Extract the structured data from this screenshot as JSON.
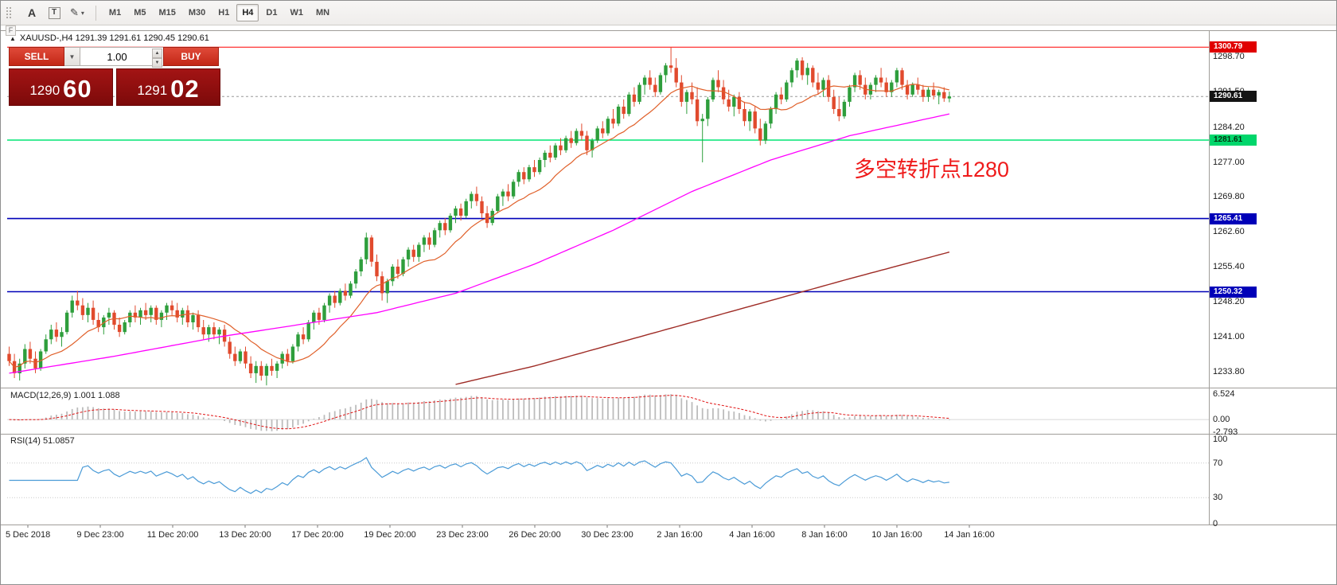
{
  "toolbar": {
    "arrow_label": "A",
    "text_label": "T",
    "timeframes": [
      "M1",
      "M5",
      "M15",
      "M30",
      "H1",
      "H4",
      "D1",
      "W1",
      "MN"
    ],
    "active_timeframe": "H4"
  },
  "icons": {
    "pencil": "✎",
    "caret": "▾",
    "triangle": "▲",
    "combo_caret": "▼",
    "spin_up": "▲",
    "spin_down": "▼",
    "f_marker": "F"
  },
  "chart_header": {
    "symbol_line": "XAUUSD-,H4  1291.39 1291.61 1290.45 1290.61"
  },
  "trade_panel": {
    "sell_label": "SELL",
    "buy_label": "BUY",
    "volume": "1.00",
    "sell_price_big": {
      "major": "1290",
      "minor": "60"
    },
    "buy_price_big": {
      "major": "1291",
      "minor": "02"
    }
  },
  "annotation": {
    "text": "多空转折点1280",
    "color": "#ef1b1b"
  },
  "price_axis": {
    "labels": [
      "1298.70",
      "1291.50",
      "1284.20",
      "1277.00",
      "1269.80",
      "1262.60",
      "1255.40",
      "1248.20",
      "1241.00",
      "1233.80"
    ],
    "badges": [
      {
        "label": "1300.79",
        "price": 1300.79,
        "bg": "#e00000",
        "fg": "#ffffff",
        "name": "high-price-badge"
      },
      {
        "label": "1290.61",
        "price": 1290.61,
        "bg": "#141414",
        "fg": "#ffffff",
        "name": "current-price-badge"
      },
      {
        "label": "1281.61",
        "price": 1281.61,
        "bg": "#00d66b",
        "fg": "#05320f",
        "name": "green-line-badge"
      },
      {
        "label": "1265.41",
        "price": 1265.41,
        "bg": "#0000b8",
        "fg": "#ffffff",
        "name": "blue-line-badge-upper"
      },
      {
        "label": "1250.32",
        "price": 1250.32,
        "bg": "#0000b8",
        "fg": "#ffffff",
        "name": "blue-line-badge-lower"
      }
    ]
  },
  "time_axis": {
    "labels": [
      "5 Dec 2018",
      "9 Dec 23:00",
      "11 Dec 20:00",
      "13 Dec 20:00",
      "17 Dec 20:00",
      "19 Dec 20:00",
      "23 Dec 23:00",
      "26 Dec 20:00",
      "30 Dec 23:00",
      "2 Jan 16:00",
      "4 Jan 16:00",
      "8 Jan 16:00",
      "10 Jan 16:00",
      "14 Jan 16:00"
    ]
  },
  "chart_data": {
    "type": "candlestick",
    "symbol": "XAUUSD-",
    "timeframe": "H4",
    "title": "XAUUSD-,H4",
    "ohlc_current": {
      "open": 1291.39,
      "high": 1291.61,
      "low": 1290.45,
      "close": 1290.61
    },
    "price_range": {
      "max": 1304.1,
      "min": 1230.7
    },
    "up_color": "#2e9e3c",
    "down_color": "#e14a2d",
    "candles": [
      [
        1237.5,
        1239.0,
        1235.0,
        1236.0
      ],
      [
        1236.0,
        1237.5,
        1232.5,
        1233.5
      ],
      [
        1233.5,
        1236.5,
        1232.0,
        1235.5
      ],
      [
        1235.5,
        1239.5,
        1234.5,
        1238.5
      ],
      [
        1238.5,
        1240.0,
        1235.5,
        1236.5
      ],
      [
        1236.5,
        1238.0,
        1233.5,
        1234.5
      ],
      [
        1234.5,
        1238.5,
        1234.0,
        1238.0
      ],
      [
        1238.0,
        1241.5,
        1237.5,
        1240.5
      ],
      [
        1240.5,
        1243.5,
        1239.5,
        1242.5
      ],
      [
        1242.5,
        1244.0,
        1240.0,
        1241.0
      ],
      [
        1241.0,
        1243.0,
        1239.0,
        1242.0
      ],
      [
        1242.0,
        1246.5,
        1241.5,
        1246.0
      ],
      [
        1246.0,
        1249.5,
        1245.0,
        1248.5
      ],
      [
        1248.5,
        1250.5,
        1246.5,
        1247.5
      ],
      [
        1247.5,
        1249.0,
        1244.5,
        1245.5
      ],
      [
        1245.5,
        1248.0,
        1244.0,
        1247.0
      ],
      [
        1247.0,
        1248.5,
        1243.5,
        1244.5
      ],
      [
        1244.5,
        1246.0,
        1242.0,
        1243.0
      ],
      [
        1243.0,
        1245.5,
        1241.5,
        1245.0
      ],
      [
        1245.0,
        1247.0,
        1243.5,
        1246.0
      ],
      [
        1246.0,
        1246.5,
        1242.5,
        1243.5
      ],
      [
        1243.5,
        1245.0,
        1241.0,
        1242.0
      ],
      [
        1242.0,
        1244.5,
        1241.5,
        1244.0
      ],
      [
        1244.0,
        1246.5,
        1243.0,
        1246.0
      ],
      [
        1246.0,
        1247.5,
        1244.0,
        1245.0
      ],
      [
        1245.0,
        1247.0,
        1243.5,
        1246.5
      ],
      [
        1246.5,
        1248.0,
        1244.5,
        1245.5
      ],
      [
        1245.5,
        1247.5,
        1244.0,
        1247.0
      ],
      [
        1247.0,
        1247.5,
        1243.5,
        1244.5
      ],
      [
        1244.5,
        1246.5,
        1243.0,
        1246.0
      ],
      [
        1246.0,
        1248.0,
        1244.5,
        1247.5
      ],
      [
        1247.5,
        1248.5,
        1245.5,
        1246.5
      ],
      [
        1246.5,
        1248.0,
        1244.0,
        1245.0
      ],
      [
        1245.0,
        1247.0,
        1243.5,
        1246.5
      ],
      [
        1246.5,
        1247.5,
        1243.0,
        1244.0
      ],
      [
        1244.0,
        1246.0,
        1242.5,
        1245.5
      ],
      [
        1245.5,
        1246.5,
        1242.0,
        1243.0
      ],
      [
        1243.0,
        1244.5,
        1240.5,
        1241.5
      ],
      [
        1241.5,
        1243.5,
        1240.0,
        1243.0
      ],
      [
        1243.0,
        1244.0,
        1240.5,
        1241.5
      ],
      [
        1241.5,
        1243.0,
        1239.5,
        1242.5
      ],
      [
        1242.5,
        1243.5,
        1239.0,
        1240.0
      ],
      [
        1240.0,
        1241.0,
        1236.5,
        1237.5
      ],
      [
        1237.5,
        1239.0,
        1235.0,
        1236.0
      ],
      [
        1236.0,
        1238.5,
        1235.5,
        1238.0
      ],
      [
        1238.0,
        1239.0,
        1234.5,
        1235.5
      ],
      [
        1235.5,
        1237.0,
        1232.5,
        1233.5
      ],
      [
        1233.5,
        1236.0,
        1231.5,
        1235.0
      ],
      [
        1235.0,
        1236.0,
        1232.0,
        1233.0
      ],
      [
        1233.0,
        1235.5,
        1231.0,
        1235.0
      ],
      [
        1235.0,
        1236.5,
        1233.0,
        1234.0
      ],
      [
        1234.0,
        1236.0,
        1232.5,
        1235.5
      ],
      [
        1235.5,
        1238.0,
        1234.5,
        1237.5
      ],
      [
        1237.5,
        1238.5,
        1235.0,
        1236.0
      ],
      [
        1236.0,
        1239.5,
        1235.5,
        1239.0
      ],
      [
        1239.0,
        1242.0,
        1238.0,
        1241.5
      ],
      [
        1241.5,
        1243.0,
        1239.5,
        1240.5
      ],
      [
        1240.5,
        1244.5,
        1240.0,
        1244.0
      ],
      [
        1244.0,
        1246.5,
        1242.5,
        1246.0
      ],
      [
        1246.0,
        1247.0,
        1243.5,
        1244.5
      ],
      [
        1244.5,
        1248.0,
        1244.0,
        1247.5
      ],
      [
        1247.5,
        1250.0,
        1246.0,
        1249.5
      ],
      [
        1249.5,
        1250.5,
        1247.0,
        1248.0
      ],
      [
        1248.0,
        1251.0,
        1247.5,
        1250.5
      ],
      [
        1250.5,
        1252.0,
        1248.5,
        1249.5
      ],
      [
        1249.5,
        1252.5,
        1249.0,
        1252.0
      ],
      [
        1252.0,
        1255.0,
        1251.0,
        1254.5
      ],
      [
        1254.5,
        1257.5,
        1253.5,
        1257.0
      ],
      [
        1257.0,
        1262.5,
        1256.0,
        1261.5
      ],
      [
        1261.5,
        1262.0,
        1255.5,
        1256.5
      ],
      [
        1256.5,
        1258.0,
        1252.5,
        1253.5
      ],
      [
        1253.5,
        1254.5,
        1248.5,
        1250.0
      ],
      [
        1250.0,
        1253.0,
        1248.0,
        1252.5
      ],
      [
        1252.5,
        1256.0,
        1251.5,
        1255.5
      ],
      [
        1255.5,
        1257.0,
        1253.0,
        1254.0
      ],
      [
        1254.0,
        1257.5,
        1253.5,
        1257.0
      ],
      [
        1257.0,
        1259.5,
        1255.5,
        1259.0
      ],
      [
        1259.0,
        1260.0,
        1256.5,
        1257.5
      ],
      [
        1257.5,
        1260.5,
        1256.5,
        1260.0
      ],
      [
        1260.0,
        1262.0,
        1258.5,
        1261.5
      ],
      [
        1261.5,
        1262.5,
        1259.0,
        1260.0
      ],
      [
        1260.0,
        1263.5,
        1259.5,
        1263.0
      ],
      [
        1263.0,
        1265.0,
        1261.5,
        1264.5
      ],
      [
        1264.5,
        1265.5,
        1262.0,
        1263.0
      ],
      [
        1263.0,
        1266.5,
        1262.5,
        1266.0
      ],
      [
        1266.0,
        1268.0,
        1264.5,
        1267.5
      ],
      [
        1267.5,
        1268.5,
        1265.0,
        1266.0
      ],
      [
        1266.0,
        1269.5,
        1265.5,
        1269.0
      ],
      [
        1269.0,
        1271.0,
        1267.5,
        1270.5
      ],
      [
        1270.5,
        1272.0,
        1268.0,
        1269.0
      ],
      [
        1269.0,
        1270.0,
        1265.5,
        1266.5
      ],
      [
        1266.5,
        1268.0,
        1263.5,
        1264.5
      ],
      [
        1264.5,
        1267.5,
        1264.0,
        1267.0
      ],
      [
        1267.0,
        1270.5,
        1266.5,
        1270.0
      ],
      [
        1270.0,
        1271.5,
        1268.0,
        1271.0
      ],
      [
        1271.0,
        1272.5,
        1269.0,
        1270.0
      ],
      [
        1270.0,
        1273.5,
        1269.5,
        1273.0
      ],
      [
        1273.0,
        1275.5,
        1272.0,
        1275.0
      ],
      [
        1275.0,
        1276.0,
        1272.5,
        1273.5
      ],
      [
        1273.5,
        1276.5,
        1273.0,
        1276.0
      ],
      [
        1276.0,
        1277.5,
        1274.0,
        1275.0
      ],
      [
        1275.0,
        1278.0,
        1274.5,
        1277.5
      ],
      [
        1277.5,
        1279.5,
        1276.0,
        1279.0
      ],
      [
        1279.0,
        1280.5,
        1277.0,
        1278.0
      ],
      [
        1278.0,
        1281.0,
        1277.5,
        1280.5
      ],
      [
        1280.5,
        1282.0,
        1278.5,
        1279.5
      ],
      [
        1279.5,
        1282.5,
        1279.0,
        1282.0
      ],
      [
        1282.0,
        1283.5,
        1280.0,
        1281.0
      ],
      [
        1281.0,
        1284.0,
        1280.5,
        1283.5
      ],
      [
        1283.5,
        1285.0,
        1281.5,
        1282.5
      ],
      [
        1282.5,
        1283.5,
        1278.5,
        1279.5
      ],
      [
        1279.5,
        1282.0,
        1278.0,
        1281.5
      ],
      [
        1281.5,
        1284.5,
        1281.0,
        1284.0
      ],
      [
        1284.0,
        1285.5,
        1282.0,
        1283.0
      ],
      [
        1283.0,
        1286.5,
        1282.5,
        1286.0
      ],
      [
        1286.0,
        1288.0,
        1284.0,
        1285.0
      ],
      [
        1285.0,
        1289.0,
        1284.5,
        1288.5
      ],
      [
        1288.5,
        1290.0,
        1286.0,
        1287.0
      ],
      [
        1287.0,
        1291.5,
        1286.5,
        1291.0
      ],
      [
        1291.0,
        1292.5,
        1288.5,
        1289.5
      ],
      [
        1289.5,
        1293.5,
        1289.0,
        1293.0
      ],
      [
        1293.0,
        1295.0,
        1291.0,
        1294.5
      ],
      [
        1294.5,
        1296.0,
        1292.0,
        1293.0
      ],
      [
        1293.0,
        1294.5,
        1290.5,
        1291.5
      ],
      [
        1291.5,
        1295.5,
        1291.0,
        1295.0
      ],
      [
        1295.0,
        1297.5,
        1293.5,
        1297.0
      ],
      [
        1297.0,
        1300.8,
        1295.5,
        1296.5
      ],
      [
        1296.5,
        1298.5,
        1292.5,
        1293.5
      ],
      [
        1293.5,
        1295.0,
        1288.5,
        1289.5
      ],
      [
        1289.5,
        1292.0,
        1287.0,
        1291.5
      ],
      [
        1291.5,
        1293.5,
        1289.0,
        1290.0
      ],
      [
        1290.0,
        1292.5,
        1284.5,
        1285.5
      ],
      [
        1285.5,
        1287.0,
        1277.0,
        1286.0
      ],
      [
        1286.0,
        1290.5,
        1284.5,
        1290.0
      ],
      [
        1290.0,
        1294.5,
        1289.5,
        1294.0
      ],
      [
        1294.0,
        1296.0,
        1291.5,
        1292.5
      ],
      [
        1292.5,
        1294.0,
        1289.0,
        1290.0
      ],
      [
        1290.0,
        1292.0,
        1287.5,
        1288.5
      ],
      [
        1288.5,
        1291.0,
        1286.5,
        1290.5
      ],
      [
        1290.5,
        1291.5,
        1287.0,
        1288.0
      ],
      [
        1288.0,
        1289.5,
        1284.5,
        1285.5
      ],
      [
        1285.5,
        1288.0,
        1283.5,
        1287.5
      ],
      [
        1287.5,
        1288.5,
        1283.0,
        1284.0
      ],
      [
        1284.0,
        1286.0,
        1280.5,
        1281.5
      ],
      [
        1281.5,
        1285.5,
        1280.8,
        1285.0
      ],
      [
        1285.0,
        1288.5,
        1284.0,
        1288.0
      ],
      [
        1288.0,
        1291.5,
        1287.0,
        1291.0
      ],
      [
        1291.0,
        1292.5,
        1289.0,
        1290.0
      ],
      [
        1290.0,
        1294.0,
        1289.5,
        1293.5
      ],
      [
        1293.5,
        1296.5,
        1292.5,
        1296.0
      ],
      [
        1296.0,
        1298.5,
        1294.5,
        1298.0
      ],
      [
        1298.0,
        1298.7,
        1294.0,
        1295.0
      ],
      [
        1295.0,
        1297.5,
        1293.0,
        1296.5
      ],
      [
        1296.5,
        1297.0,
        1292.5,
        1293.5
      ],
      [
        1293.5,
        1295.5,
        1291.0,
        1292.0
      ],
      [
        1292.0,
        1294.5,
        1290.5,
        1294.0
      ],
      [
        1294.0,
        1295.0,
        1289.5,
        1290.5
      ],
      [
        1290.5,
        1292.0,
        1287.0,
        1288.0
      ],
      [
        1288.0,
        1290.5,
        1285.5,
        1286.5
      ],
      [
        1286.5,
        1290.0,
        1286.0,
        1289.5
      ],
      [
        1289.5,
        1293.0,
        1288.5,
        1292.5
      ],
      [
        1292.5,
        1295.5,
        1291.5,
        1295.0
      ],
      [
        1295.0,
        1296.0,
        1292.0,
        1293.0
      ],
      [
        1293.0,
        1294.5,
        1290.0,
        1291.0
      ],
      [
        1291.0,
        1293.5,
        1290.0,
        1293.0
      ],
      [
        1293.0,
        1295.0,
        1291.5,
        1294.5
      ],
      [
        1294.5,
        1296.5,
        1292.5,
        1293.5
      ],
      [
        1293.5,
        1294.5,
        1290.5,
        1291.5
      ],
      [
        1291.5,
        1294.0,
        1290.5,
        1293.5
      ],
      [
        1293.5,
        1296.5,
        1292.5,
        1296.0
      ],
      [
        1296.0,
        1296.5,
        1292.0,
        1293.0
      ],
      [
        1293.0,
        1294.0,
        1290.0,
        1291.0
      ],
      [
        1291.0,
        1293.5,
        1290.5,
        1293.0
      ],
      [
        1293.0,
        1294.5,
        1291.0,
        1292.0
      ],
      [
        1292.0,
        1293.0,
        1289.5,
        1290.5
      ],
      [
        1290.5,
        1292.5,
        1289.5,
        1292.0
      ],
      [
        1292.0,
        1293.5,
        1290.0,
        1290.8
      ],
      [
        1290.8,
        1292.0,
        1289.0,
        1291.5
      ],
      [
        1291.5,
        1292.5,
        1289.5,
        1290.2
      ],
      [
        1290.2,
        1291.61,
        1289.4,
        1290.61
      ]
    ],
    "overlays": {
      "lines": [
        {
          "price": 1300.79,
          "color": "#ff0000",
          "width": 1,
          "name": "high-line-1300"
        },
        {
          "price": 1290.61,
          "color": "#9a9a9a",
          "width": 1,
          "dash": "3,3",
          "name": "current-price-line"
        },
        {
          "price": 1281.61,
          "color": "#00e673",
          "width": 1.4,
          "name": "turning-point-line-1281"
        },
        {
          "price": 1265.41,
          "color": "#0000b8",
          "width": 1.6,
          "name": "support-line-1265"
        },
        {
          "price": 1250.32,
          "color": "#0000b8",
          "width": 1.6,
          "name": "support-line-1250"
        }
      ],
      "ma_fast": {
        "period": 13,
        "color": "#e0602a"
      },
      "ma_mid": {
        "color": "#ff00ff",
        "waypoints": [
          [
            0,
            1233.5
          ],
          [
            20,
            1237
          ],
          [
            40,
            1241
          ],
          [
            55,
            1243.5
          ],
          [
            70,
            1246
          ],
          [
            85,
            1250
          ],
          [
            100,
            1256
          ],
          [
            115,
            1263
          ],
          [
            130,
            1271
          ],
          [
            145,
            1277.5
          ],
          [
            160,
            1282.5
          ],
          [
            179,
            1287
          ]
        ]
      },
      "ma_slow": {
        "color": "#9e2b25",
        "waypoints": [
          [
            85,
            1231.2
          ],
          [
            100,
            1235
          ],
          [
            120,
            1241
          ],
          [
            140,
            1247
          ],
          [
            160,
            1253
          ],
          [
            179,
            1258.5
          ]
        ]
      }
    },
    "macd": {
      "label": "MACD(12,26,9) 1.001 1.088",
      "fast": 12,
      "slow": 26,
      "signal": 9,
      "vmax": 6.524,
      "vmin": -2.793,
      "axis": [
        {
          "label": "6.524",
          "value": 6.524
        },
        {
          "label": "0.00",
          "value": 0
        },
        {
          "label": "-2.793",
          "value": -2.793
        }
      ]
    },
    "rsi": {
      "label": "RSI(14) 51.0857",
      "period": 14,
      "color": "#4b9bd7",
      "levels": [
        70,
        30
      ],
      "axis": [
        {
          "label": "100",
          "value": 100
        },
        {
          "label": "70",
          "value": 70
        },
        {
          "label": "30",
          "value": 30
        },
        {
          "label": "0",
          "value": 0
        }
      ]
    }
  }
}
